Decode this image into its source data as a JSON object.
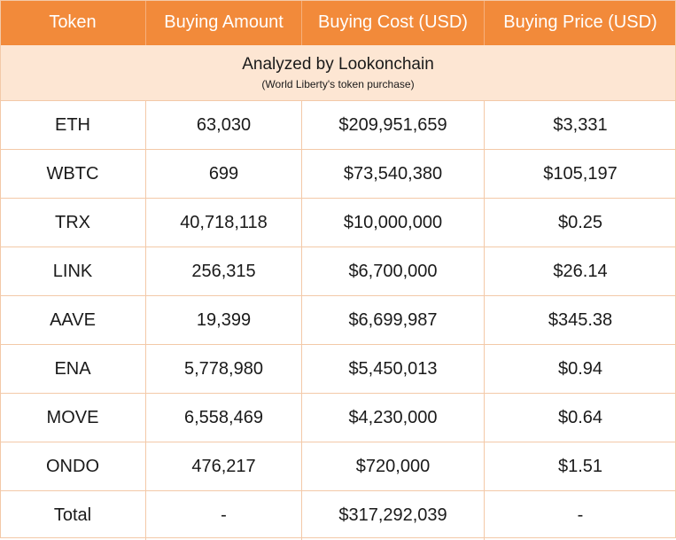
{
  "chart_data": {
    "type": "table",
    "title": "Analyzed by Lookonchain",
    "subtitle": "(World Liberty's token purchase)",
    "columns": [
      "Token",
      "Buying Amount",
      "Buying Cost (USD)",
      "Buying Price (USD)"
    ],
    "rows": [
      [
        "ETH",
        "63,030",
        "$209,951,659",
        "$3,331"
      ],
      [
        "WBTC",
        "699",
        "$73,540,380",
        "$105,197"
      ],
      [
        "TRX",
        "40,718,118",
        "$10,000,000",
        "$0.25"
      ],
      [
        "LINK",
        "256,315",
        "$6,700,000",
        "$26.14"
      ],
      [
        "AAVE",
        "19,399",
        "$6,699,987",
        "$345.38"
      ],
      [
        "ENA",
        "5,778,980",
        "$5,450,013",
        "$0.94"
      ],
      [
        "MOVE",
        "6,558,469",
        "$4,230,000",
        "$0.64"
      ],
      [
        "ONDO",
        "476,217",
        "$720,000",
        "$1.51"
      ],
      [
        "Total",
        "-",
        "$317,292,039",
        "-"
      ]
    ]
  },
  "colors": {
    "header_bg": "#f28a3a",
    "banner_bg": "#fde6d3",
    "grid_line": "#f3c9a8"
  }
}
